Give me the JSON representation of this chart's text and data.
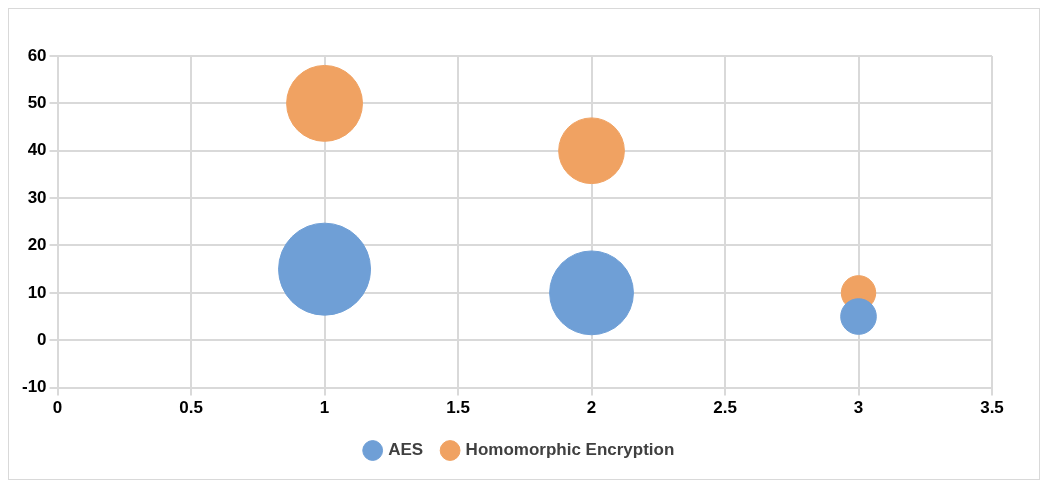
{
  "chart_data": {
    "type": "bubble",
    "x": [
      1,
      2,
      3
    ],
    "series": [
      {
        "name": "AES",
        "color": "#6f9fd6",
        "values": [
          15,
          10,
          5
        ],
        "sizes": [
          1,
          0.83,
          0.15
        ]
      },
      {
        "name": "Homomorphic Encryption",
        "color": "#f0a262",
        "values": [
          50,
          40,
          10
        ],
        "sizes": [
          0.68,
          0.51,
          0.14
        ]
      }
    ],
    "xlim": [
      0,
      3.5
    ],
    "xticks": [
      0,
      0.5,
      1,
      1.5,
      2,
      2.5,
      3,
      3.5
    ],
    "ylim": [
      -10,
      60
    ],
    "yticks": [
      -10,
      0,
      10,
      20,
      30,
      40,
      50,
      60
    ],
    "grid": true,
    "legend": "bottom"
  }
}
